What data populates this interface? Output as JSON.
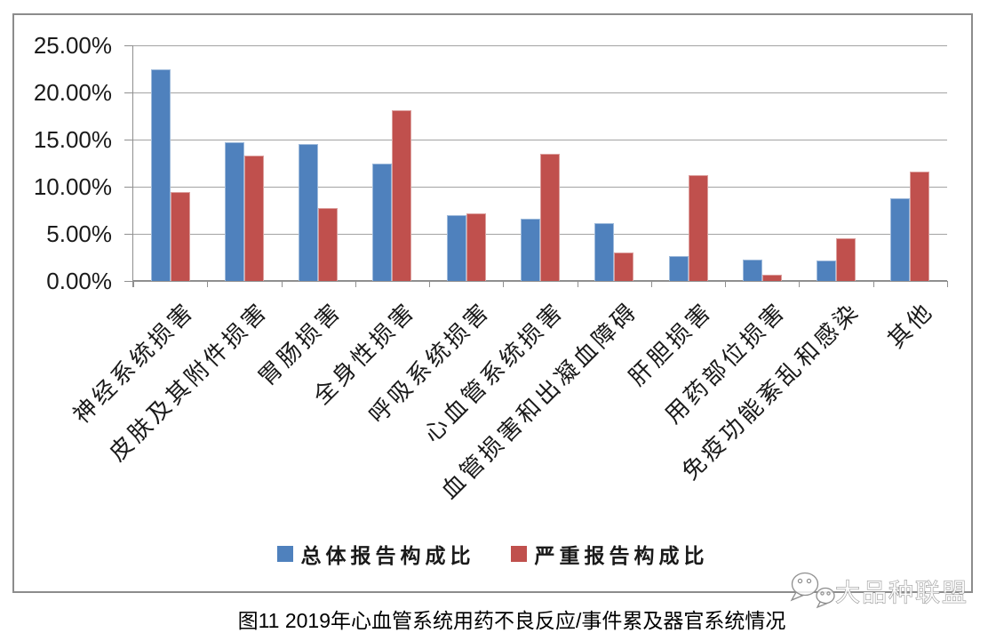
{
  "chart_data": {
    "type": "bar",
    "title": "",
    "categories": [
      "神经系统损害",
      "皮肤及其附件损害",
      "胃肠损害",
      "全身性损害",
      "呼吸系统损害",
      "心血管系统损害",
      "血管损害和出凝血障碍",
      "肝胆损害",
      "用药部位损害",
      "免疫功能紊乱和感染",
      "其他"
    ],
    "series": [
      {
        "name": "总体报告构成比",
        "color": "#4F81BD",
        "values": [
          22.5,
          14.7,
          14.5,
          12.5,
          7.0,
          6.6,
          6.1,
          2.6,
          2.3,
          2.2,
          8.8
        ]
      },
      {
        "name": "严重报告构成比",
        "color": "#C0504D",
        "values": [
          9.4,
          13.3,
          7.7,
          18.1,
          7.2,
          13.5,
          3.0,
          11.2,
          0.7,
          4.5,
          11.6
        ]
      }
    ],
    "xlabel": "",
    "ylabel": "",
    "ylim": [
      0,
      25
    ],
    "ytick_step": 5,
    "ytick_labels": [
      "0.00%",
      "5.00%",
      "10.00%",
      "15.00%",
      "20.00%",
      "25.00%"
    ],
    "grid": true,
    "grid_color": "#a3a3a3",
    "axis_color": "#8f8f8f",
    "legend_position": "bottom"
  },
  "caption": "图11 2019年心血管系统用药不良反应/事件累及器官系统情况",
  "watermark": {
    "icon": "chat-bubbles-icon",
    "text": "大品种联盟"
  }
}
